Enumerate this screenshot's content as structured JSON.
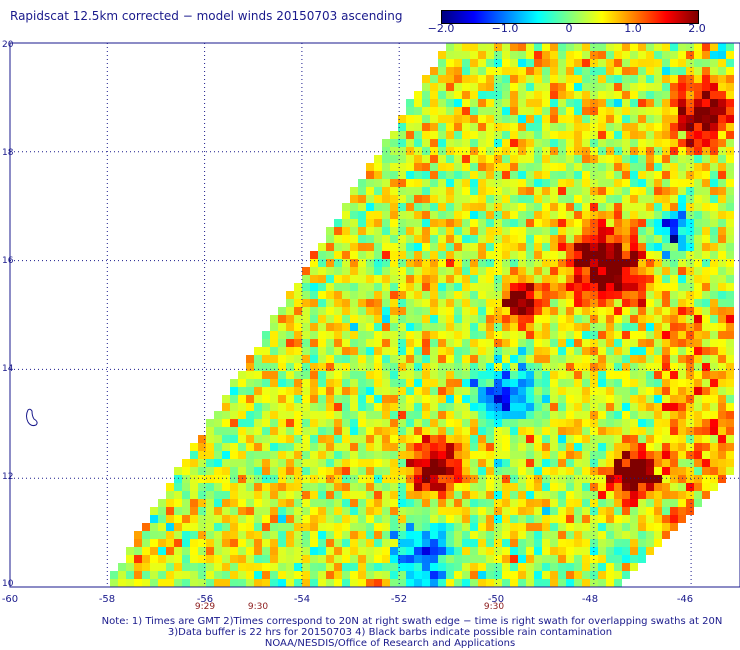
{
  "title": "Rapidscat 12.5km corrected − model winds 20150703 ascending",
  "colorbar": {
    "ticks": [
      {
        "label": "−2.0",
        "value": -2.0
      },
      {
        "label": "−1.0",
        "value": -1.0
      },
      {
        "label": "0",
        "value": 0
      },
      {
        "label": "1.0",
        "value": 1.0
      },
      {
        "label": "2.0",
        "value": 2.0
      }
    ],
    "colors": [
      "#00007f",
      "#0000ff",
      "#0080ff",
      "#00ffff",
      "#80ff80",
      "#ffff00",
      "#ff8000",
      "#ff0000",
      "#7f0000"
    ]
  },
  "map": {
    "lon_range": [
      -60,
      -45
    ],
    "lat_range": [
      10,
      20
    ],
    "lon_ticks": [
      "-60",
      "-58",
      "-56",
      "-54",
      "-52",
      "-50",
      "-48",
      "-46"
    ],
    "lat_ticks": [
      "10",
      "12",
      "14",
      "16",
      "18",
      "20"
    ],
    "gridlines": true
  },
  "times": [
    {
      "label": "9:29",
      "lon": -56
    },
    {
      "label": "9:30",
      "lon": -54.8
    },
    {
      "label": "9:30",
      "lon": -50
    }
  ],
  "notes": [
    "Note: 1) Times are GMT 2)Times correspond to 20N at right swath edge − time is right swath for overlapping swaths at 20N",
    "3)Data buffer is 22 hrs for 20150703 4) Black barbs indicate possible rain contamination",
    "NOAA/NESDIS/Office of Research and Applications"
  ]
}
